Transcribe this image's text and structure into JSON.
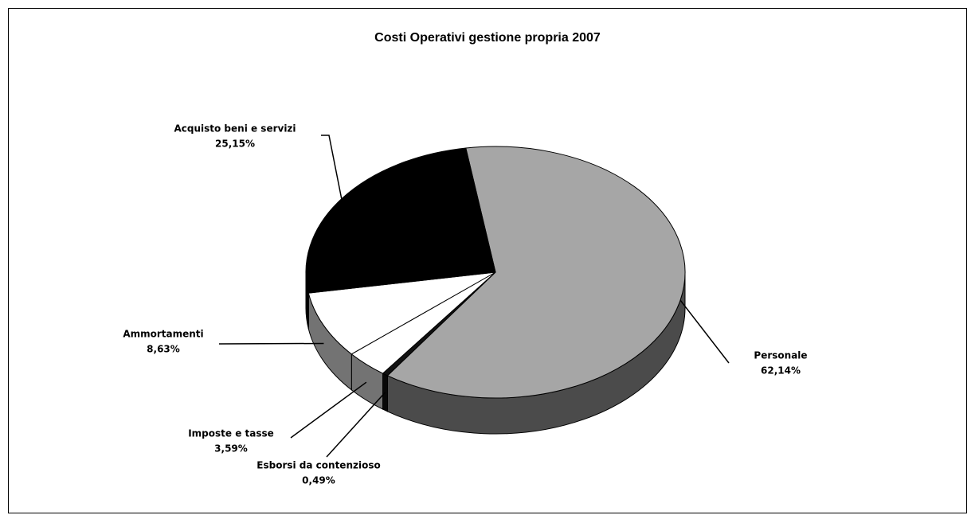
{
  "chart_data": {
    "type": "pie",
    "title": "Costi Operativi gestione propria 2007",
    "categories": [
      "Personale",
      "Esborsi da contenzioso",
      "Imposte e tasse",
      "Ammortamenti",
      "Acquisto beni e servizi"
    ],
    "values": [
      62.14,
      0.49,
      3.59,
      8.63,
      25.15
    ],
    "value_labels": [
      "62,14%",
      "0,49%",
      "3,59%",
      "8,63%",
      "25,15%"
    ],
    "colors": [
      "#a6a6a6",
      "#111111",
      "#ffffff",
      "#ffffff",
      "#000000"
    ]
  }
}
